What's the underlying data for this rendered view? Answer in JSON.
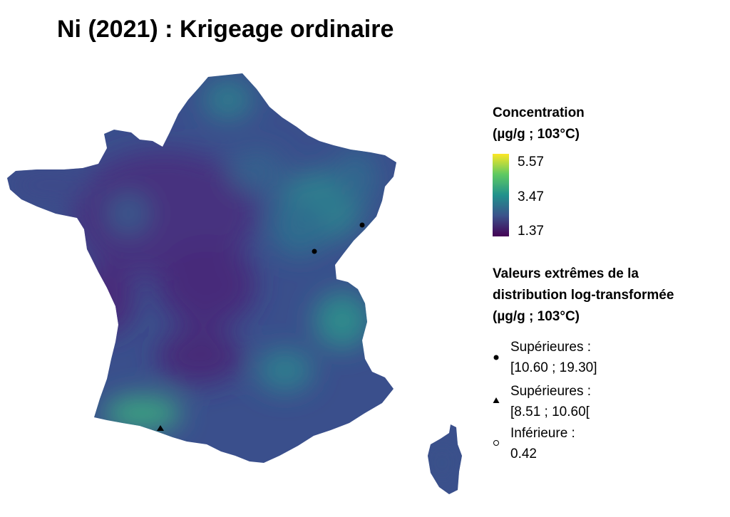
{
  "title": "Ni (2021) : Krigeage ordinaire",
  "colorbar": {
    "title_line1": "Concentration",
    "title_line2": "(µg/g ; 103°C)",
    "ticks": [
      "5.57",
      "3.47",
      "1.37"
    ],
    "min": 1.37,
    "max": 5.57,
    "colors": [
      "#440154",
      "#31688e",
      "#35b779",
      "#fde725"
    ]
  },
  "extremes": {
    "title_line1": "Valeurs extrêmes de la",
    "title_line2": "distribution log-transformée",
    "title_line3": "(µg/g ; 103°C)",
    "items": [
      {
        "symbol": "filled-circle-icon",
        "line1": "Supérieures :",
        "line2": "[10.60 ; 19.30]"
      },
      {
        "symbol": "filled-triangle-icon",
        "line1": "Supérieures :",
        "line2": "[8.51 ; 10.60["
      },
      {
        "symbol": "open-circle-icon",
        "line1": "Inférieure :",
        "line2": "0.42"
      }
    ]
  },
  "map_colors": {
    "background": "#3b4f8a",
    "low": "#472f7d",
    "mid": "#2f7f8e",
    "high": "#3fa07e"
  }
}
